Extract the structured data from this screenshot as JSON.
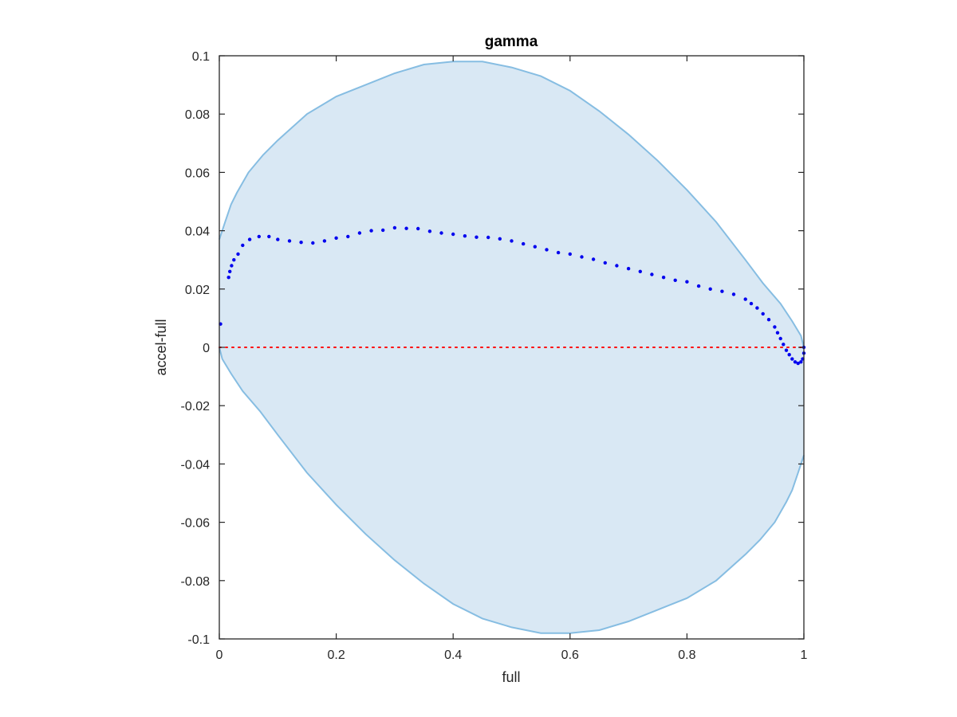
{
  "chart_data": {
    "type": "scatter",
    "title": "gamma",
    "xlabel": "full",
    "ylabel": "accel-full",
    "xlim": [
      0,
      1
    ],
    "ylim": [
      -0.1,
      0.1
    ],
    "xticks": [
      0,
      0.2,
      0.4,
      0.6,
      0.8,
      1
    ],
    "xtick_labels": [
      "0",
      "0.2",
      "0.4",
      "0.6",
      "0.8",
      "1"
    ],
    "yticks": [
      0.1,
      0.08,
      0.06,
      0.04,
      0.02,
      0,
      -0.02,
      -0.04,
      -0.06,
      -0.08,
      -0.1
    ],
    "ytick_labels": [
      "0.1",
      "0.08",
      "0.06",
      "0.04",
      "0.02",
      "0",
      "-0.02",
      "-0.04",
      "-0.06",
      "-0.08",
      "-0.1"
    ],
    "grid": false,
    "colors": {
      "points": "#0000ee",
      "region_fill": "#d9e8f4",
      "region_edge": "#86bde2",
      "reference_line": "#ff0000",
      "axes": "#262626"
    },
    "reference_line": {
      "y": 0,
      "style": "dotted"
    },
    "region": {
      "upper": [
        [
          0,
          0.037
        ],
        [
          0.01,
          0.043
        ],
        [
          0.02,
          0.049
        ],
        [
          0.03,
          0.053
        ],
        [
          0.05,
          0.06
        ],
        [
          0.075,
          0.066
        ],
        [
          0.1,
          0.071
        ],
        [
          0.15,
          0.08
        ],
        [
          0.2,
          0.086
        ],
        [
          0.25,
          0.09
        ],
        [
          0.3,
          0.094
        ],
        [
          0.35,
          0.097
        ],
        [
          0.4,
          0.098
        ],
        [
          0.45,
          0.098
        ],
        [
          0.5,
          0.096
        ],
        [
          0.55,
          0.093
        ],
        [
          0.6,
          0.088
        ],
        [
          0.65,
          0.081
        ],
        [
          0.7,
          0.073
        ],
        [
          0.75,
          0.064
        ],
        [
          0.8,
          0.054
        ],
        [
          0.85,
          0.043
        ],
        [
          0.9,
          0.03
        ],
        [
          0.93,
          0.022
        ],
        [
          0.96,
          0.015
        ],
        [
          0.98,
          0.009
        ],
        [
          0.995,
          0.004
        ],
        [
          1,
          0
        ]
      ],
      "lower": [
        [
          0,
          0
        ],
        [
          0.005,
          -0.004
        ],
        [
          0.02,
          -0.009
        ],
        [
          0.04,
          -0.015
        ],
        [
          0.07,
          -0.022
        ],
        [
          0.1,
          -0.03
        ],
        [
          0.15,
          -0.043
        ],
        [
          0.2,
          -0.054
        ],
        [
          0.25,
          -0.064
        ],
        [
          0.3,
          -0.073
        ],
        [
          0.35,
          -0.081
        ],
        [
          0.4,
          -0.088
        ],
        [
          0.45,
          -0.093
        ],
        [
          0.5,
          -0.096
        ],
        [
          0.55,
          -0.098
        ],
        [
          0.6,
          -0.098
        ],
        [
          0.65,
          -0.097
        ],
        [
          0.7,
          -0.094
        ],
        [
          0.75,
          -0.09
        ],
        [
          0.8,
          -0.086
        ],
        [
          0.85,
          -0.08
        ],
        [
          0.9,
          -0.071
        ],
        [
          0.925,
          -0.066
        ],
        [
          0.95,
          -0.06
        ],
        [
          0.97,
          -0.053
        ],
        [
          0.98,
          -0.049
        ],
        [
          0.99,
          -0.043
        ],
        [
          1,
          -0.037
        ]
      ]
    },
    "points": [
      [
        0.002,
        0.008
      ],
      [
        0.016,
        0.024
      ],
      [
        0.018,
        0.026
      ],
      [
        0.021,
        0.028
      ],
      [
        0.025,
        0.03
      ],
      [
        0.032,
        0.032
      ],
      [
        0.04,
        0.035
      ],
      [
        0.052,
        0.037
      ],
      [
        0.068,
        0.038
      ],
      [
        0.085,
        0.038
      ],
      [
        0.1,
        0.037
      ],
      [
        0.12,
        0.0365
      ],
      [
        0.14,
        0.036
      ],
      [
        0.16,
        0.0358
      ],
      [
        0.18,
        0.0365
      ],
      [
        0.2,
        0.0375
      ],
      [
        0.22,
        0.038
      ],
      [
        0.24,
        0.0392
      ],
      [
        0.26,
        0.04
      ],
      [
        0.28,
        0.0402
      ],
      [
        0.3,
        0.041
      ],
      [
        0.32,
        0.0408
      ],
      [
        0.34,
        0.0407
      ],
      [
        0.36,
        0.0398
      ],
      [
        0.38,
        0.0392
      ],
      [
        0.4,
        0.0388
      ],
      [
        0.42,
        0.0382
      ],
      [
        0.44,
        0.0378
      ],
      [
        0.46,
        0.0377
      ],
      [
        0.48,
        0.0372
      ],
      [
        0.5,
        0.0365
      ],
      [
        0.52,
        0.0355
      ],
      [
        0.54,
        0.0345
      ],
      [
        0.56,
        0.0335
      ],
      [
        0.58,
        0.0325
      ],
      [
        0.6,
        0.032
      ],
      [
        0.62,
        0.031
      ],
      [
        0.64,
        0.0302
      ],
      [
        0.66,
        0.029
      ],
      [
        0.68,
        0.028
      ],
      [
        0.7,
        0.027
      ],
      [
        0.72,
        0.026
      ],
      [
        0.74,
        0.025
      ],
      [
        0.76,
        0.024
      ],
      [
        0.78,
        0.023
      ],
      [
        0.8,
        0.0225
      ],
      [
        0.82,
        0.021
      ],
      [
        0.84,
        0.02
      ],
      [
        0.86,
        0.0192
      ],
      [
        0.88,
        0.0182
      ],
      [
        0.9,
        0.0165
      ],
      [
        0.91,
        0.015
      ],
      [
        0.92,
        0.0135
      ],
      [
        0.93,
        0.0115
      ],
      [
        0.94,
        0.0095
      ],
      [
        0.95,
        0.007
      ],
      [
        0.955,
        0.005
      ],
      [
        0.96,
        0.003
      ],
      [
        0.965,
        0.001
      ],
      [
        0.97,
        -0.001
      ],
      [
        0.975,
        -0.0025
      ],
      [
        0.98,
        -0.004
      ],
      [
        0.985,
        -0.005
      ],
      [
        0.99,
        -0.0055
      ],
      [
        0.995,
        -0.005
      ],
      [
        0.998,
        -0.004
      ],
      [
        1,
        -0.002
      ],
      [
        1,
        0
      ]
    ]
  }
}
